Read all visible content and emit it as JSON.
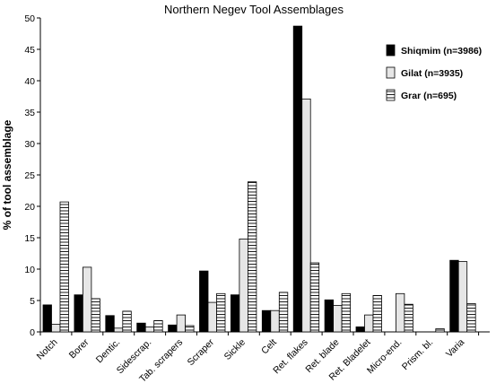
{
  "chart_data": {
    "type": "bar",
    "title": "Northern Negev Tool Assemblages",
    "xlabel": "",
    "ylabel": "% of tool assemblage",
    "ylim": [
      0,
      50
    ],
    "yticks": [
      0,
      5,
      10,
      15,
      20,
      25,
      30,
      35,
      40,
      45,
      50
    ],
    "grid": false,
    "legend_position": "top-right",
    "categories": [
      "Notch",
      "Borer",
      "Dentic.",
      "Sidescrap.",
      "Tab. scrapers",
      "Scraper",
      "Sickle",
      "Celt",
      "Ret. flakes",
      "Ret. blade",
      "Ret. Bladelet",
      "Micro-end.",
      "Prism. bl.",
      "Varia"
    ],
    "series": [
      {
        "name": "Shiqmim (n=3986)",
        "fill": "solid-black",
        "values": [
          4.3,
          5.9,
          2.6,
          1.4,
          1.1,
          9.7,
          5.9,
          3.4,
          48.7,
          5.1,
          0.8,
          0,
          0,
          11.4
        ]
      },
      {
        "name": "Gilat (n=3935)",
        "fill": "light-gray",
        "values": [
          1.2,
          10.3,
          0.6,
          0.8,
          2.7,
          4.7,
          14.8,
          3.4,
          37.1,
          4.2,
          2.7,
          6.1,
          0,
          11.2
        ]
      },
      {
        "name": "Grar (n=695)",
        "fill": "horizontal-stripes",
        "values": [
          20.7,
          5.3,
          3.3,
          1.8,
          1.0,
          6.1,
          23.9,
          6.3,
          11.0,
          6.1,
          5.8,
          4.4,
          0.5,
          4.5
        ]
      }
    ]
  }
}
